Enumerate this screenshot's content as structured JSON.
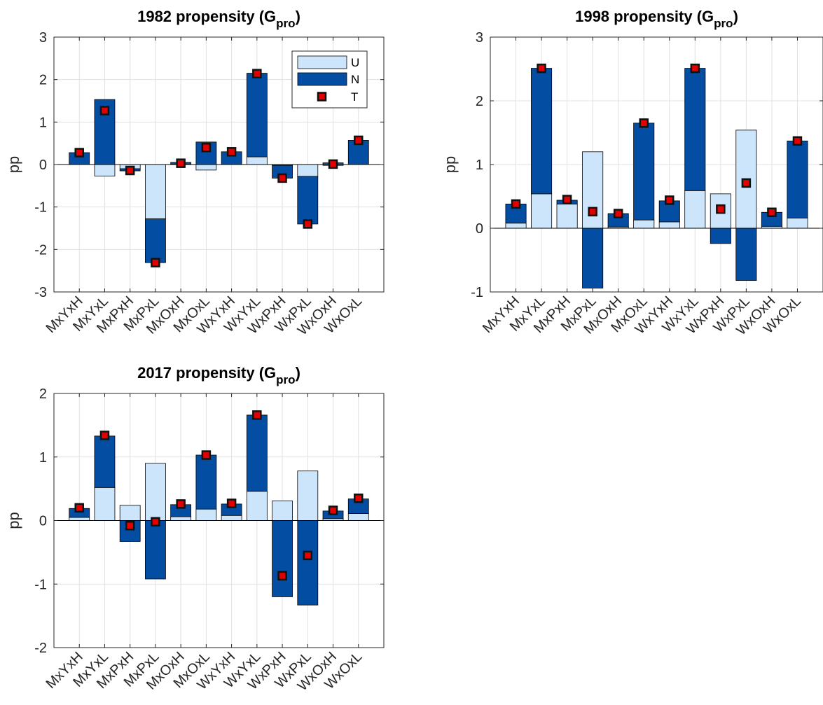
{
  "colors": {
    "U": "#cce5fb",
    "N": "#034ea2",
    "T_fill": "#e20000",
    "T_edge": "#111111",
    "grid": "#e1e1e1",
    "axis": "#262626"
  },
  "legend": {
    "entries": [
      "U",
      "N",
      "T"
    ]
  },
  "chart_data": [
    {
      "type": "bar",
      "stacked": true,
      "title": "1982 propensity (G",
      "title_sub": "pro",
      "title_close": ")",
      "xlabel": "",
      "ylabel": "pp",
      "ylim": [
        -3,
        3
      ],
      "yticks": [
        -3,
        -2,
        -1,
        0,
        1,
        2,
        3
      ],
      "ytick_labels": [
        "-3",
        "-2",
        "-1",
        "0",
        "1",
        "2",
        "3"
      ],
      "grid": true,
      "legend_position": "top-right",
      "categories": [
        "MxYxH",
        "MxYxL",
        "MxPxH",
        "MxPxL",
        "MxOxH",
        "MxOxL",
        "WxYxH",
        "WxYxL",
        "WxPxH",
        "WxPxL",
        "WxOxH",
        "WxOxL"
      ],
      "series": [
        {
          "name": "U",
          "type": "bar",
          "values": [
            0.0,
            -0.27,
            -0.1,
            -1.28,
            0.01,
            -0.13,
            0.0,
            0.18,
            -0.02,
            -0.28,
            -0.02,
            0.0
          ]
        },
        {
          "name": "N",
          "type": "bar",
          "values": [
            0.28,
            1.53,
            -0.05,
            -1.03,
            0.04,
            0.53,
            0.3,
            1.97,
            -0.3,
            -1.12,
            0.04,
            0.57
          ]
        },
        {
          "name": "T",
          "type": "marker",
          "values": [
            0.28,
            1.27,
            -0.14,
            -2.31,
            0.03,
            0.4,
            0.3,
            2.14,
            -0.32,
            -1.4,
            0.01,
            0.57
          ]
        }
      ]
    },
    {
      "type": "bar",
      "stacked": true,
      "title": "1998 propensity (G",
      "title_sub": "pro",
      "title_close": ")",
      "xlabel": "",
      "ylabel": "pp",
      "ylim": [
        -1,
        3
      ],
      "yticks": [
        -1,
        0,
        1,
        2,
        3
      ],
      "ytick_labels": [
        "-1",
        "0",
        "1",
        "2",
        "3"
      ],
      "grid": true,
      "categories": [
        "MxYxH",
        "MxYxL",
        "MxPxH",
        "MxPxL",
        "MxOxH",
        "MxOxL",
        "WxYxH",
        "WxYxL",
        "WxPxH",
        "WxPxL",
        "WxOxH",
        "WxOxL"
      ],
      "series": [
        {
          "name": "U",
          "type": "bar",
          "values": [
            0.08,
            0.54,
            0.38,
            1.2,
            0.02,
            0.13,
            0.1,
            0.59,
            0.54,
            1.54,
            0.03,
            0.16
          ]
        },
        {
          "name": "N",
          "type": "bar",
          "values": [
            0.3,
            1.97,
            0.06,
            -0.94,
            0.21,
            1.52,
            0.33,
            1.92,
            -0.24,
            -0.82,
            0.22,
            1.21
          ]
        },
        {
          "name": "T",
          "type": "marker",
          "values": [
            0.38,
            2.51,
            0.45,
            0.26,
            0.23,
            1.65,
            0.44,
            2.51,
            0.3,
            0.71,
            0.25,
            1.37
          ]
        }
      ]
    },
    {
      "type": "bar",
      "stacked": true,
      "title": "2017 propensity (G",
      "title_sub": "pro",
      "title_close": ")",
      "xlabel": "",
      "ylabel": "pp",
      "ylim": [
        -2,
        2
      ],
      "yticks": [
        -2,
        -1,
        0,
        1,
        2
      ],
      "ytick_labels": [
        "-2",
        "-1",
        "0",
        "1",
        "2"
      ],
      "grid": true,
      "categories": [
        "MxYxH",
        "MxYxL",
        "MxPxH",
        "MxPxL",
        "MxOxH",
        "MxOxL",
        "WxYxH",
        "WxYxL",
        "WxPxH",
        "WxPxL",
        "WxOxH",
        "WxOxL"
      ],
      "series": [
        {
          "name": "U",
          "type": "bar",
          "values": [
            0.05,
            0.52,
            0.24,
            0.9,
            0.06,
            0.18,
            0.08,
            0.46,
            0.31,
            0.78,
            0.03,
            0.11
          ]
        },
        {
          "name": "N",
          "type": "bar",
          "values": [
            0.14,
            0.81,
            -0.33,
            -0.92,
            0.19,
            0.85,
            0.18,
            1.2,
            -1.2,
            -1.33,
            0.12,
            0.23
          ]
        },
        {
          "name": "T",
          "type": "marker",
          "values": [
            0.2,
            1.34,
            -0.08,
            -0.02,
            0.26,
            1.03,
            0.27,
            1.66,
            -0.87,
            -0.55,
            0.16,
            0.35
          ]
        }
      ]
    }
  ]
}
